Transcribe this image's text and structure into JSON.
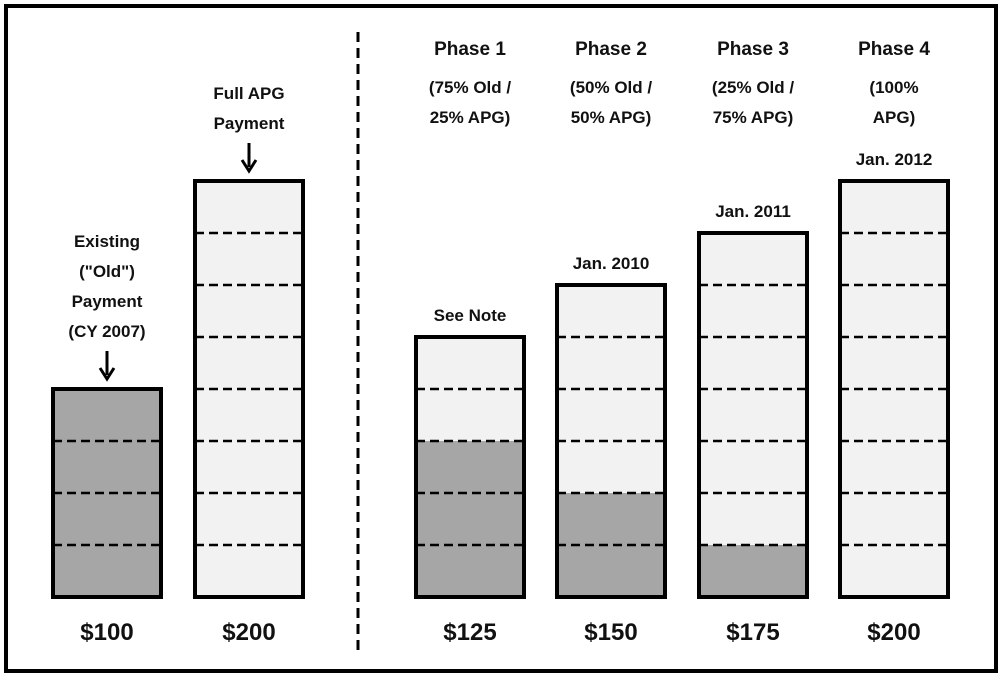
{
  "colors": {
    "old": "#a6a6a6",
    "apg": "#f2f2f2",
    "outline": "#000000"
  },
  "chart_data": {
    "type": "bar",
    "stacked": true,
    "segment_unit": 25,
    "bars": [
      {
        "group": "left",
        "value": 100,
        "old": 100,
        "apg": 0,
        "value_label": "$100",
        "top_label": [
          "Existing",
          "(\"Old\")",
          "Payment",
          "(CY 2007)"
        ],
        "arrow": true
      },
      {
        "group": "left",
        "value": 200,
        "old": 0,
        "apg": 200,
        "value_label": "$200",
        "top_label": [
          "Full APG",
          "Payment"
        ],
        "arrow": true
      },
      {
        "group": "right",
        "value": 125,
        "old": 75,
        "apg": 50,
        "value_label": "$125",
        "phase": "Phase 1",
        "mix": [
          "(75% Old /",
          "25% APG)"
        ],
        "top_label": [
          "See Note"
        ],
        "arrow": false
      },
      {
        "group": "right",
        "value": 150,
        "old": 50,
        "apg": 100,
        "value_label": "$150",
        "phase": "Phase 2",
        "mix": [
          "(50% Old /",
          "50% APG)"
        ],
        "top_label": [
          "Jan. 2010"
        ],
        "arrow": false
      },
      {
        "group": "right",
        "value": 175,
        "old": 25,
        "apg": 150,
        "value_label": "$175",
        "phase": "Phase 3",
        "mix": [
          "(25% Old /",
          "75% APG)"
        ],
        "top_label": [
          "Jan. 2011"
        ],
        "arrow": false
      },
      {
        "group": "right",
        "value": 200,
        "old": 0,
        "apg": 200,
        "value_label": "$200",
        "phase": "Phase 4",
        "mix": [
          "(100%",
          "APG)"
        ],
        "top_label": [
          "Jan. 2012"
        ],
        "arrow": false
      }
    ]
  }
}
